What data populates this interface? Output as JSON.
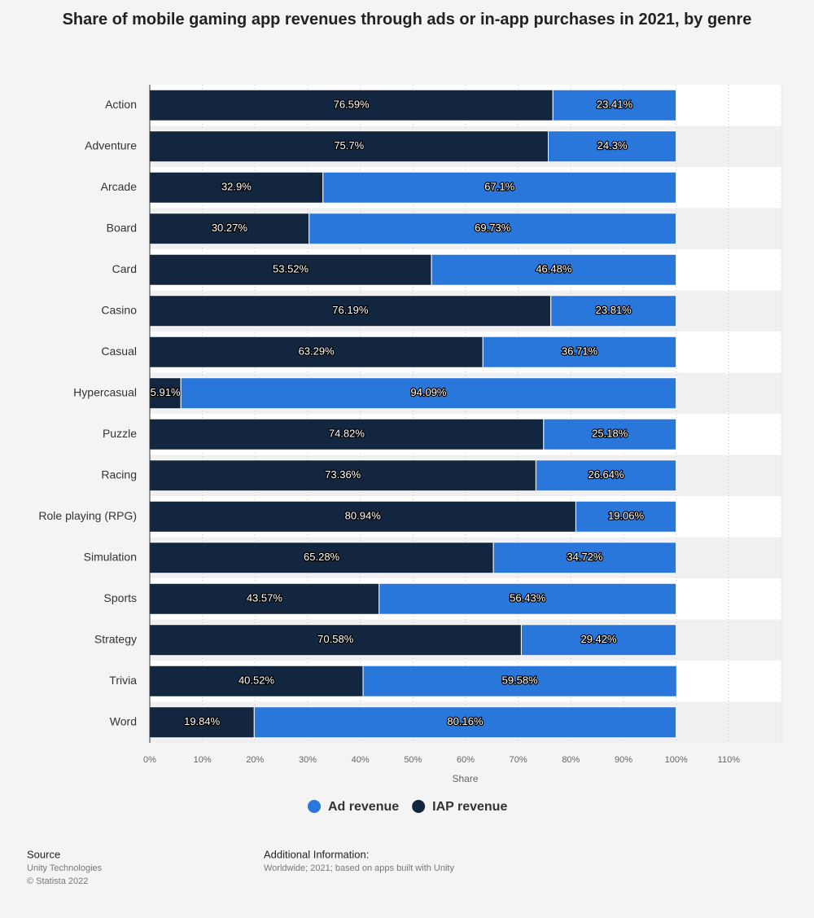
{
  "chart_data": {
    "type": "stacked-bar-horizontal",
    "title": "Share of mobile gaming app revenues through ads or in-app purchases in 2021, by genre",
    "x_label": "Share",
    "categories": [
      "Action",
      "Adventure",
      "Arcade",
      "Board",
      "Card",
      "Casino",
      "Casual",
      "Hypercasual",
      "Puzzle",
      "Racing",
      "Role playing (RPG)",
      "Simulation",
      "Sports",
      "Strategy",
      "Trivia",
      "Word"
    ],
    "series": [
      {
        "name": "Ad revenue",
        "color": "#2a77dc",
        "values": [
          23.41,
          24.3,
          67.1,
          69.73,
          46.48,
          23.81,
          36.71,
          94.09,
          25.18,
          26.64,
          19.06,
          34.72,
          56.43,
          29.42,
          59.58,
          80.16
        ],
        "value_labels": [
          "23.41%",
          "24.3%",
          "67.1%",
          "69.73%",
          "46.48%",
          "23.81%",
          "36.71%",
          "94.09%",
          "25.18%",
          "26.64%",
          "19.06%",
          "34.72%",
          "56.43%",
          "29.42%",
          "59.58%",
          "80.16%"
        ]
      },
      {
        "name": "IAP revenue",
        "color": "#13263f",
        "values": [
          76.59,
          75.7,
          32.9,
          30.27,
          53.52,
          76.19,
          63.29,
          5.91,
          74.82,
          73.36,
          80.94,
          65.28,
          43.57,
          70.58,
          40.52,
          19.84
        ],
        "value_labels": [
          "76.59%",
          "75.7%",
          "32.9%",
          "30.27%",
          "53.52%",
          "76.19%",
          "63.29%",
          "5.91%",
          "74.82%",
          "73.36%",
          "80.94%",
          "65.28%",
          "43.57%",
          "70.58%",
          "40.52%",
          "19.84%"
        ]
      }
    ],
    "xlim": [
      0,
      120
    ],
    "xticks": [
      {
        "value": 0,
        "label": "0%"
      },
      {
        "value": 10,
        "label": "10%"
      },
      {
        "value": 20,
        "label": "20%"
      },
      {
        "value": 30,
        "label": "30%"
      },
      {
        "value": 40,
        "label": "40%"
      },
      {
        "value": 50,
        "label": "50%"
      },
      {
        "value": 60,
        "label": "60%"
      },
      {
        "value": 70,
        "label": "70%"
      },
      {
        "value": 80,
        "label": "80%"
      },
      {
        "value": 90,
        "label": "90%"
      },
      {
        "value": 100,
        "label": "100%"
      },
      {
        "value": 110,
        "label": "110%"
      }
    ],
    "grid": true,
    "legend": "bottom"
  },
  "footer": {
    "source_title": "Source",
    "source_lines": [
      "Unity Technologies",
      "© Statista 2022"
    ],
    "info_title": "Additional Information:",
    "info_lines": [
      "Worldwide; 2021; based on apps built with Unity"
    ]
  }
}
